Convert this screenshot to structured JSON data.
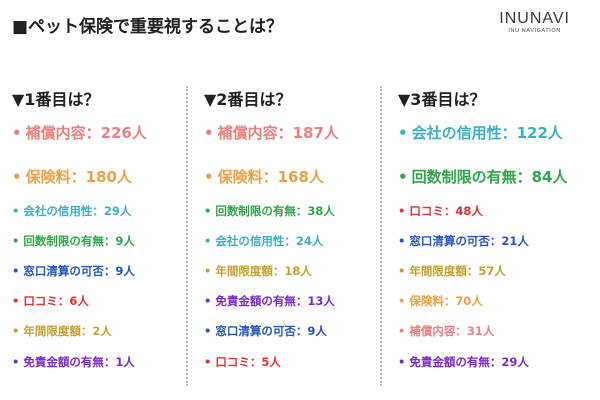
{
  "title": "■ペット保険で重要視することは？",
  "logo": {
    "main": "INUNAVI",
    "sub": "INU NAVIGATION"
  },
  "columns": [
    {
      "heading": "▼1番目は？",
      "items": [
        {
          "text": "補償内容：226人",
          "color": "#ee8080"
        },
        {
          "text": "保険料：180人",
          "color": "#f0a040"
        },
        {
          "text": "会社の信用性：29人",
          "color": "#3ab0c8"
        },
        {
          "text": "回数制限の有無：9人",
          "color": "#2ea84a"
        },
        {
          "text": "窓口清算の可否：9人",
          "color": "#2255c8"
        },
        {
          "text": "口コミ：6人",
          "color": "#e53030"
        },
        {
          "text": "年間限度額：2人",
          "color": "#c8a030"
        },
        {
          "text": "免責金額の有無：1人",
          "color": "#7a2ad0"
        }
      ]
    },
    {
      "heading": "▼2番目は？",
      "items": [
        {
          "text": "補償内容：187人",
          "color": "#ee8080"
        },
        {
          "text": "保険料：168人",
          "color": "#f0a040"
        },
        {
          "text": "回数制限の有無：38人",
          "color": "#2ea84a"
        },
        {
          "text": "会社の信用性：24人",
          "color": "#3ab0c8"
        },
        {
          "text": "年間限度額：18人",
          "color": "#c8a030"
        },
        {
          "text": "免責金額の有無：13人",
          "color": "#7a2ad0"
        },
        {
          "text": "窓口清算の可否：9人",
          "color": "#2255c8"
        },
        {
          "text": "口コミ：5人",
          "color": "#e53030"
        }
      ]
    },
    {
      "heading": "▼3番目は？",
      "items": [
        {
          "text": "会社の信用性：122人",
          "color": "#3ab0c8"
        },
        {
          "text": "回数制限の有無：84人",
          "color": "#2ea84a"
        },
        {
          "text": "口コミ：48人",
          "color": "#e53030"
        },
        {
          "text": "窓口清算の可否：21人",
          "color": "#2255c8"
        },
        {
          "text": "年間限度額：57人",
          "color": "#c8a030"
        },
        {
          "text": "保険料：70人",
          "color": "#f0a040"
        },
        {
          "text": "補償内容：31人",
          "color": "#ee8080"
        },
        {
          "text": "免責金額の有無：29人",
          "color": "#7a2ad0"
        }
      ]
    }
  ]
}
